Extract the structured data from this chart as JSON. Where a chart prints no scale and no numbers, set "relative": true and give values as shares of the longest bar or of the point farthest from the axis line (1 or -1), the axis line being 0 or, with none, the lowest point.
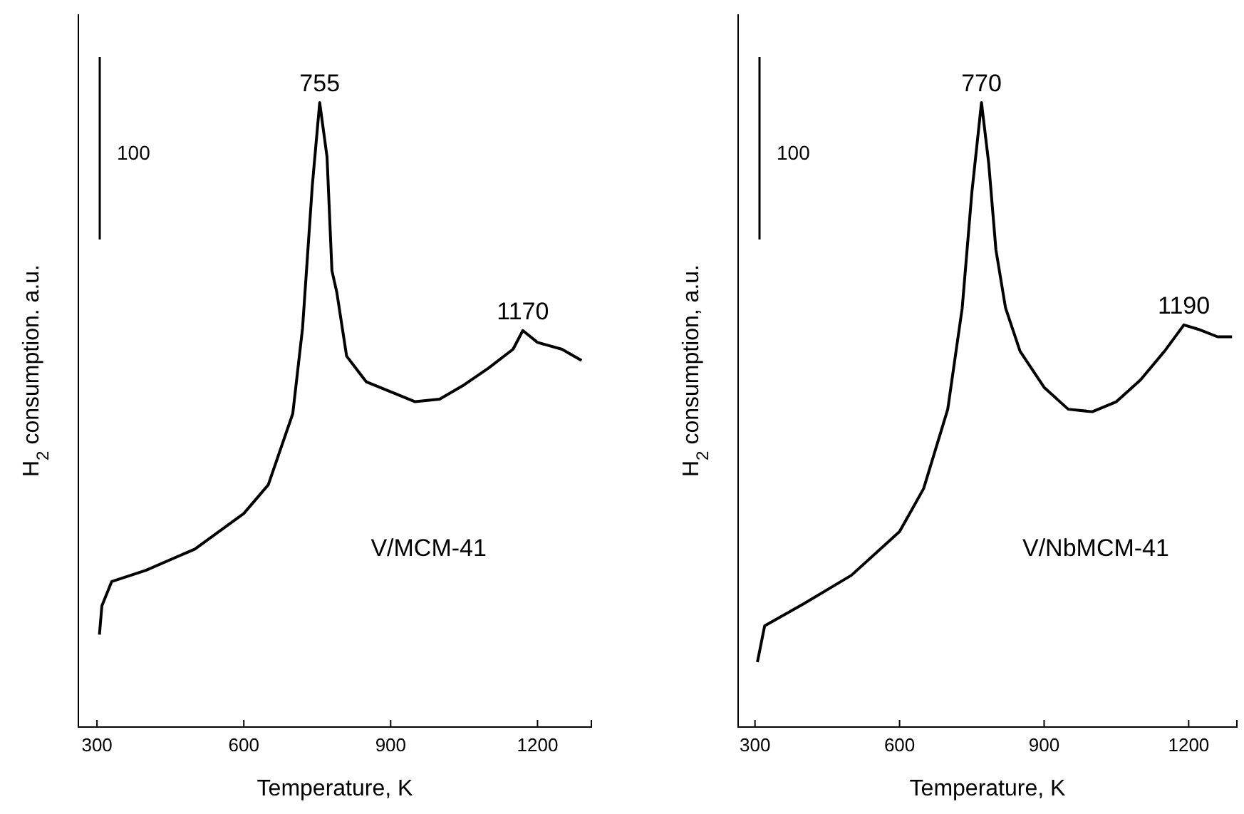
{
  "chart_data": [
    {
      "type": "line",
      "relative": true,
      "xlabel": "Temperature, K",
      "ylabel": "H$_{2}$ consumption. a.u.",
      "xlim": [
        262,
        1310
      ],
      "xticks": [
        300,
        600,
        900,
        1200
      ],
      "x": [
        305,
        310,
        330,
        400,
        500,
        600,
        650,
        700,
        720,
        740,
        755,
        770,
        780,
        790,
        810,
        850,
        900,
        950,
        1000,
        1050,
        1100,
        1150,
        1170,
        1200,
        1250,
        1290
      ],
      "series": [
        {
          "color": "#000000",
          "values": [
            0.148,
            0.194,
            0.233,
            0.251,
            0.285,
            0.342,
            0.388,
            0.502,
            0.639,
            0.868,
            1,
            0.913,
            0.731,
            0.696,
            0.594,
            0.553,
            0.537,
            0.521,
            0.525,
            0.548,
            0.575,
            0.605,
            0.635,
            0.616,
            0.605,
            0.587
          ]
        }
      ],
      "annotations": [
        {
          "text": "755",
          "x": 755,
          "y": 1
        },
        {
          "text": "1170",
          "x": 1170,
          "y": 0.635
        },
        "V/MCM-41",
        "100"
      ]
    },
    {
      "type": "line",
      "relative": true,
      "xlabel": "Temperature, K",
      "ylabel": "H$_{2}$ consumption, a.u.",
      "xlim": [
        265,
        1300
      ],
      "xticks": [
        300,
        600,
        900,
        1200
      ],
      "x": [
        305,
        320,
        400,
        500,
        600,
        650,
        700,
        730,
        750,
        770,
        785,
        800,
        820,
        850,
        900,
        950,
        1000,
        1050,
        1100,
        1150,
        1190,
        1220,
        1260,
        1290
      ],
      "series": [
        {
          "color": "#000000",
          "values": [
            0.104,
            0.162,
            0.197,
            0.243,
            0.313,
            0.382,
            0.509,
            0.671,
            0.856,
            1,
            0.903,
            0.764,
            0.671,
            0.602,
            0.544,
            0.509,
            0.505,
            0.521,
            0.556,
            0.602,
            0.644,
            0.637,
            0.625,
            0.625
          ]
        }
      ],
      "annotations": [
        {
          "text": "770",
          "x": 770,
          "y": 1
        },
        {
          "text": "1190",
          "x": 1190,
          "y": 0.644
        },
        "V/NbMCM-41",
        "100"
      ]
    }
  ]
}
